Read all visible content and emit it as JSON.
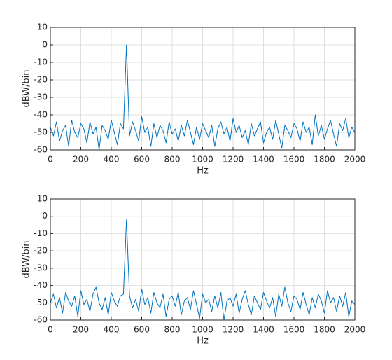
{
  "chart_data": [
    {
      "type": "line",
      "xlabel": "Hz",
      "ylabel": "dBW/bin",
      "color": "#0072bd",
      "grid": true,
      "xlim": [
        0,
        2000
      ],
      "ylim": [
        -60,
        10
      ],
      "xticks": [
        0,
        200,
        400,
        600,
        800,
        1000,
        1200,
        1400,
        1600,
        1800,
        2000
      ],
      "yticks": [
        -60,
        -50,
        -40,
        -30,
        -20,
        -10,
        0,
        10
      ],
      "x": [
        0,
        20,
        40,
        60,
        80,
        100,
        120,
        140,
        160,
        180,
        200,
        220,
        240,
        260,
        280,
        300,
        320,
        340,
        360,
        380,
        400,
        420,
        440,
        460,
        480,
        500,
        520,
        540,
        560,
        580,
        600,
        620,
        640,
        660,
        680,
        700,
        720,
        740,
        760,
        780,
        800,
        820,
        840,
        860,
        880,
        900,
        920,
        940,
        960,
        980,
        1000,
        1020,
        1040,
        1060,
        1080,
        1100,
        1120,
        1140,
        1160,
        1180,
        1200,
        1220,
        1240,
        1260,
        1280,
        1300,
        1320,
        1340,
        1360,
        1380,
        1400,
        1420,
        1440,
        1460,
        1480,
        1500,
        1520,
        1540,
        1560,
        1580,
        1600,
        1620,
        1640,
        1660,
        1680,
        1700,
        1720,
        1740,
        1760,
        1780,
        1800,
        1820,
        1840,
        1860,
        1880,
        1900,
        1920,
        1940,
        1960,
        1980,
        2000
      ],
      "values": [
        -47,
        -52,
        -44,
        -55,
        -49,
        -46,
        -58,
        -43,
        -50,
        -53,
        -45,
        -48,
        -56,
        -44,
        -51,
        -47,
        -60,
        -46,
        -49,
        -54,
        -43,
        -50,
        -57,
        -45,
        -48,
        0,
        -52,
        -44,
        -49,
        -55,
        -41,
        -50,
        -47,
        -58,
        -45,
        -53,
        -46,
        -49,
        -56,
        -44,
        -51,
        -48,
        -55,
        -46,
        -52,
        -43,
        -50,
        -57,
        -47,
        -54,
        -45,
        -49,
        -53,
        -46,
        -58,
        -48,
        -44,
        -51,
        -47,
        -55,
        -42,
        -50,
        -46,
        -53,
        -49,
        -57,
        -45,
        -52,
        -48,
        -44,
        -56,
        -50,
        -47,
        -54,
        -43,
        -51,
        -59,
        -46,
        -49,
        -53,
        -45,
        -48,
        -55,
        -44,
        -50,
        -47,
        -57,
        -40,
        -52,
        -46,
        -54,
        -48,
        -43,
        -51,
        -58,
        -45,
        -49,
        -42,
        -53,
        -47,
        -50
      ]
    },
    {
      "type": "line",
      "xlabel": "Hz",
      "ylabel": "dBW/bin",
      "color": "#0072bd",
      "grid": true,
      "xlim": [
        0,
        2000
      ],
      "ylim": [
        -60,
        10
      ],
      "xticks": [
        0,
        200,
        400,
        600,
        800,
        1000,
        1200,
        1400,
        1600,
        1800,
        2000
      ],
      "yticks": [
        -60,
        -50,
        -40,
        -30,
        -20,
        -10,
        0,
        10
      ],
      "x": [
        0,
        20,
        40,
        60,
        80,
        100,
        120,
        140,
        160,
        180,
        200,
        220,
        240,
        260,
        280,
        300,
        320,
        340,
        360,
        380,
        400,
        420,
        440,
        460,
        480,
        500,
        520,
        540,
        560,
        580,
        600,
        620,
        640,
        660,
        680,
        700,
        720,
        740,
        760,
        780,
        800,
        820,
        840,
        860,
        880,
        900,
        920,
        940,
        960,
        980,
        1000,
        1020,
        1040,
        1060,
        1080,
        1100,
        1120,
        1140,
        1160,
        1180,
        1200,
        1220,
        1240,
        1260,
        1280,
        1300,
        1320,
        1340,
        1360,
        1380,
        1400,
        1420,
        1440,
        1460,
        1480,
        1500,
        1520,
        1540,
        1560,
        1580,
        1600,
        1620,
        1640,
        1660,
        1680,
        1700,
        1720,
        1740,
        1760,
        1780,
        1800,
        1820,
        1840,
        1860,
        1880,
        1900,
        1920,
        1940,
        1960,
        1980,
        2000
      ],
      "values": [
        -50,
        -45,
        -53,
        -47,
        -56,
        -44,
        -49,
        -52,
        -46,
        -58,
        -43,
        -51,
        -48,
        -55,
        -45,
        -41,
        -50,
        -54,
        -47,
        -57,
        -44,
        -49,
        -52,
        -46,
        -45,
        -2,
        -46,
        -53,
        -48,
        -55,
        -42,
        -51,
        -47,
        -56,
        -44,
        -50,
        -53,
        -45,
        -58,
        -48,
        -46,
        -52,
        -44,
        -57,
        -49,
        -47,
        -54,
        -43,
        -51,
        -59,
        -45,
        -50,
        -48,
        -55,
        -46,
        -53,
        -44,
        -60,
        -49,
        -47,
        -52,
        -45,
        -56,
        -48,
        -43,
        -51,
        -57,
        -46,
        -50,
        -54,
        -44,
        -49,
        -53,
        -47,
        -58,
        -45,
        -52,
        -41,
        -50,
        -55,
        -46,
        -48,
        -54,
        -44,
        -51,
        -57,
        -47,
        -53,
        -45,
        -49,
        -56,
        -43,
        -50,
        -47,
        -55,
        -46,
        -52,
        -44,
        -58,
        -49,
        -51
      ]
    }
  ]
}
